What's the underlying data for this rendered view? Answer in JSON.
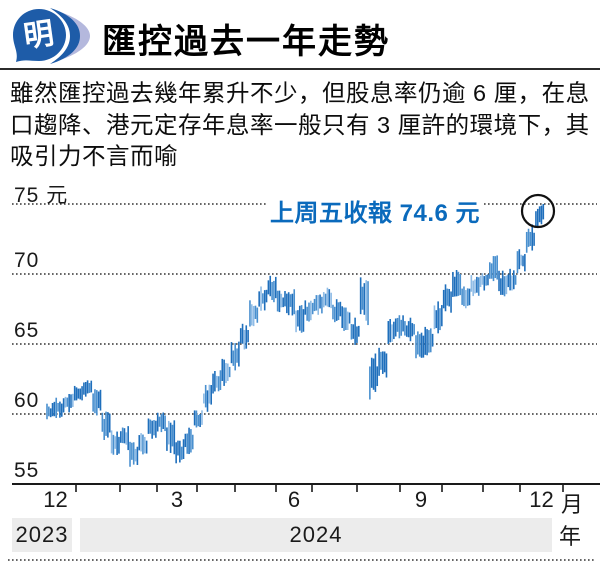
{
  "header": {
    "logo_text": "明",
    "title": "匯控過去一年走勢"
  },
  "lede": "雖然匯控過去幾年累升不少，但股息率仍逾 6 厘，在息口趨降、港元定存年息率一般只有 3 厘許的環境下，其吸引力不言而喻",
  "annotation": {
    "label": "上周五收報 74.6 元",
    "value": 74.6
  },
  "colors": {
    "bar_dark": "#1f6fbc",
    "bar_mid": "#4a90cf",
    "bar_light": "#8fbce6",
    "grid": "#333333",
    "axis": "#1a1a1a",
    "annotation_blue": "#0a6abc",
    "logo_blue": "#1e5ca8",
    "logo_swoosh": "#b4b8dd",
    "year_band_bg": "#ececec",
    "circle_stroke": "#111111"
  },
  "chart_data": {
    "type": "candlestick-hilo",
    "title": "匯控過去一年走勢",
    "ylabel_unit": "元",
    "xlabel_unit": "月",
    "year_unit": "年",
    "ylim": [
      55,
      76.5
    ],
    "grid": "dotted-horizontal",
    "y_ticks": [
      {
        "value": 75,
        "label": "75 元"
      },
      {
        "value": 70,
        "label": "70"
      },
      {
        "value": 65,
        "label": "65"
      },
      {
        "value": 60,
        "label": "60"
      },
      {
        "value": 55,
        "label": "55"
      }
    ],
    "x_ticks": [
      {
        "month_index": 0,
        "label": "12"
      },
      {
        "month_index": 3,
        "label": "3"
      },
      {
        "month_index": 6,
        "label": "6"
      },
      {
        "month_index": 9,
        "label": "9"
      },
      {
        "month_index": 12,
        "label": "12"
      }
    ],
    "years": [
      {
        "label": "2023"
      },
      {
        "label": "2024"
      }
    ],
    "last_close": 74.6,
    "weekly_ranges": [
      {
        "week": "2023-12-04",
        "low": 59.3,
        "high": 60.9
      },
      {
        "week": "2023-12-11",
        "low": 59.7,
        "high": 61.2
      },
      {
        "week": "2023-12-18",
        "low": 60.1,
        "high": 61.6
      },
      {
        "week": "2023-12-25",
        "low": 60.7,
        "high": 62.1
      },
      {
        "week": "2024-01-01",
        "low": 61.1,
        "high": 62.5
      },
      {
        "week": "2024-01-08",
        "low": 59.9,
        "high": 61.9
      },
      {
        "week": "2024-01-15",
        "low": 58.1,
        "high": 60.3
      },
      {
        "week": "2024-01-22",
        "low": 56.9,
        "high": 58.9
      },
      {
        "week": "2024-01-29",
        "low": 57.3,
        "high": 59.3
      },
      {
        "week": "2024-02-05",
        "low": 56.2,
        "high": 58.1
      },
      {
        "week": "2024-02-12",
        "low": 56.9,
        "high": 58.7
      },
      {
        "week": "2024-02-19",
        "low": 58.2,
        "high": 60.1
      },
      {
        "week": "2024-02-26",
        "low": 58.7,
        "high": 60.2
      },
      {
        "week": "2024-03-04",
        "low": 57.1,
        "high": 59.6
      },
      {
        "week": "2024-03-11",
        "low": 56.4,
        "high": 58.3
      },
      {
        "week": "2024-03-18",
        "low": 57.1,
        "high": 59.1
      },
      {
        "week": "2024-03-25",
        "low": 58.6,
        "high": 60.6
      },
      {
        "week": "2024-04-01",
        "low": 60.1,
        "high": 62.1
      },
      {
        "week": "2024-04-08",
        "low": 61.4,
        "high": 63.2
      },
      {
        "week": "2024-04-15",
        "low": 62.0,
        "high": 64.0
      },
      {
        "week": "2024-04-22",
        "low": 63.1,
        "high": 65.2
      },
      {
        "week": "2024-04-29",
        "low": 64.6,
        "high": 66.6
      },
      {
        "week": "2024-05-06",
        "low": 66.1,
        "high": 68.2
      },
      {
        "week": "2024-05-13",
        "low": 67.3,
        "high": 69.3
      },
      {
        "week": "2024-05-20",
        "low": 67.9,
        "high": 69.9
      },
      {
        "week": "2024-05-27",
        "low": 67.1,
        "high": 68.9
      },
      {
        "week": "2024-06-03",
        "low": 67.0,
        "high": 69.0
      },
      {
        "week": "2024-06-10",
        "low": 65.8,
        "high": 67.8
      },
      {
        "week": "2024-06-17",
        "low": 66.6,
        "high": 68.2
      },
      {
        "week": "2024-06-24",
        "low": 67.0,
        "high": 68.7
      },
      {
        "week": "2024-07-01",
        "low": 67.4,
        "high": 69.1
      },
      {
        "week": "2024-07-08",
        "low": 66.4,
        "high": 68.2
      },
      {
        "week": "2024-07-15",
        "low": 65.9,
        "high": 67.7
      },
      {
        "week": "2024-07-22",
        "low": 64.9,
        "high": 66.9
      },
      {
        "week": "2024-07-29",
        "low": 66.3,
        "high": 70.0
      },
      {
        "week": "2024-08-05",
        "low": 61.0,
        "high": 64.5
      },
      {
        "week": "2024-08-12",
        "low": 62.6,
        "high": 64.9
      },
      {
        "week": "2024-08-19",
        "low": 64.9,
        "high": 66.9
      },
      {
        "week": "2024-08-26",
        "low": 65.4,
        "high": 67.2
      },
      {
        "week": "2024-09-02",
        "low": 65.1,
        "high": 66.9
      },
      {
        "week": "2024-09-09",
        "low": 63.8,
        "high": 65.9
      },
      {
        "week": "2024-09-16",
        "low": 64.1,
        "high": 66.3
      },
      {
        "week": "2024-09-23",
        "low": 65.6,
        "high": 68.1
      },
      {
        "week": "2024-09-30",
        "low": 67.2,
        "high": 69.3
      },
      {
        "week": "2024-10-07",
        "low": 68.1,
        "high": 70.3
      },
      {
        "week": "2024-10-14",
        "low": 67.4,
        "high": 69.2
      },
      {
        "week": "2024-10-21",
        "low": 68.4,
        "high": 70.0
      },
      {
        "week": "2024-10-28",
        "low": 68.7,
        "high": 70.4
      },
      {
        "week": "2024-11-04",
        "low": 69.4,
        "high": 71.4
      },
      {
        "week": "2024-11-11",
        "low": 68.3,
        "high": 70.3
      },
      {
        "week": "2024-11-18",
        "low": 68.8,
        "high": 70.4
      },
      {
        "week": "2024-11-25",
        "low": 70.0,
        "high": 71.9
      },
      {
        "week": "2024-12-02",
        "low": 71.5,
        "high": 73.6
      },
      {
        "week": "2024-12-09",
        "low": 73.3,
        "high": 75.0
      }
    ]
  }
}
